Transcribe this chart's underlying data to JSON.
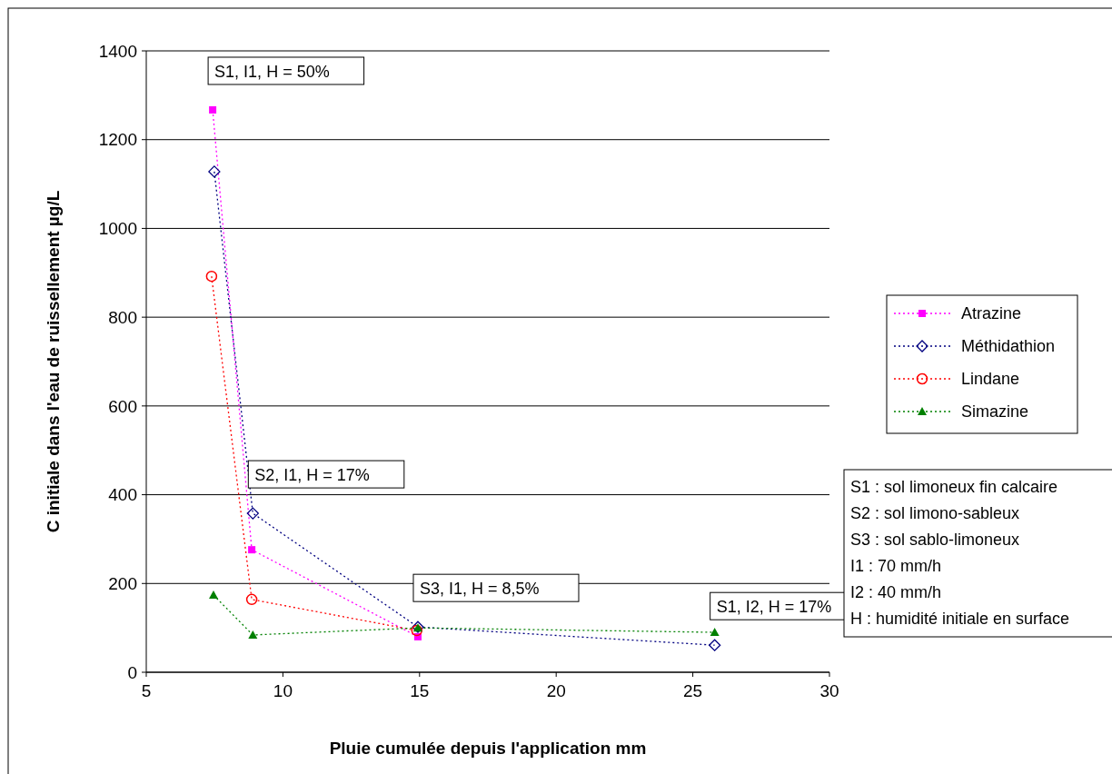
{
  "chart_data": {
    "type": "line",
    "xlabel": "Pluie cumulée depuis l'application  mm",
    "ylabel": "C initiale dans l'eau de ruissellement µg/L",
    "xlim": [
      5,
      30
    ],
    "xticks": [
      5,
      10,
      15,
      20,
      25,
      30
    ],
    "ylim": [
      0,
      1400
    ],
    "yticks": [
      0,
      200,
      400,
      600,
      800,
      1000,
      1200,
      1400
    ],
    "grid": "y",
    "legend": "right",
    "line_style": "dotted",
    "series": [
      {
        "name": "Atrazine",
        "color": "#ff00ff",
        "marker": "square",
        "x": [
          7.43,
          8.86,
          14.94
        ],
        "values": [
          1267,
          276,
          80
        ]
      },
      {
        "name": "Méthidathion",
        "color": "#000080",
        "marker": "diamond",
        "x": [
          7.49,
          8.9,
          14.94,
          25.8
        ],
        "values": [
          1128,
          358,
          102,
          61
        ]
      },
      {
        "name": "Lindane",
        "color": "#ff0000",
        "marker": "circle",
        "x": [
          7.39,
          8.86,
          14.9
        ],
        "values": [
          892,
          164,
          94
        ]
      },
      {
        "name": "Simazine",
        "color": "#008000",
        "marker": "triangle",
        "x": [
          7.46,
          8.9,
          14.94,
          25.8
        ],
        "values": [
          174,
          84,
          100,
          90
        ]
      }
    ],
    "annotations": [
      {
        "text": "S1, I1, H = 50%",
        "x": 7.43,
        "y": 1267
      },
      {
        "text": "S2, I1, H = 17%",
        "x": 8.9,
        "y": 358
      },
      {
        "text": "S3, I1, H = 8,5%",
        "x": 14.94,
        "y": 102
      },
      {
        "text": "S1, I2, H = 17%",
        "x": 25.8,
        "y": 61
      },
      "S1 : sol limoneux fin calcaire",
      "S2 : sol limono-sableux",
      "S3 : sol sablo-limoneux",
      "I1 : 70 mm/h",
      "I2 : 40 mm/h",
      "H : humidité initiale en surface"
    ]
  }
}
